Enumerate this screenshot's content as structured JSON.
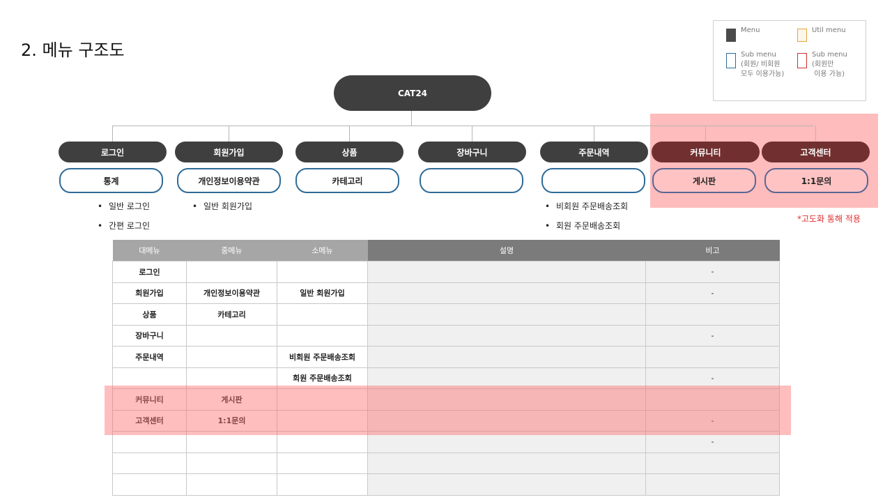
{
  "title": "2. 메뉴 구조도",
  "legend": [
    {
      "label": "Menu",
      "color": "#4a4a4a",
      "style": "filled"
    },
    {
      "label": "Util menu",
      "color": "#e8a43c",
      "style": "outlined"
    },
    {
      "label": "Sub menu\n(회원/ 비회원\n모두 이용가능)",
      "color": "#2e6b97",
      "style": "outlined"
    },
    {
      "label": "Sub menu\n(회원만\n 이용 가능)",
      "color": "#d03030",
      "style": "outlined"
    }
  ],
  "diagram": {
    "root": "CAT24",
    "branches": [
      {
        "label": "로그인",
        "sub": "통계",
        "bullets": [
          "일반 로그인",
          "간편 로그인"
        ],
        "advanced": false
      },
      {
        "label": "회원가입",
        "sub": "개인정보이용약관",
        "bullets": [
          "일반 회원가입"
        ],
        "advanced": false
      },
      {
        "label": "상품",
        "sub": "카테고리",
        "bullets": [],
        "advanced": false
      },
      {
        "label": "장바구니",
        "sub": "",
        "bullets": [],
        "advanced": false
      },
      {
        "label": "주문내역",
        "sub": "",
        "bullets": [
          "비회원 주문배송조회",
          "회원 주문배송조회"
        ],
        "advanced": false
      },
      {
        "label": "커뮤니티",
        "sub": "게시판",
        "bullets": [],
        "advanced": true
      },
      {
        "label": "고객센터",
        "sub": "1:1문의",
        "bullets": [],
        "advanced": true
      }
    ],
    "advanced_note": "*고도화 통해 적용",
    "colors": {
      "main": "#3f3f3f",
      "advanced_main": "#722f2f",
      "sub_border": "#2e6b97",
      "highlight": "#ffbcbc"
    }
  },
  "table": {
    "headers": [
      "대메뉴",
      "중메뉴",
      "소메뉴",
      "설명",
      "비고"
    ],
    "rows": [
      [
        "로그인",
        "",
        "",
        "",
        "-"
      ],
      [
        "회원가입",
        "개인정보이용약관",
        "일반 회원가입",
        "",
        "-"
      ],
      [
        "상품",
        "카테고리",
        "",
        "",
        ""
      ],
      [
        "장바구니",
        "",
        "",
        "",
        "-"
      ],
      [
        "주문내역",
        "",
        "비회원 주문배송조회",
        "",
        ""
      ],
      [
        "",
        "",
        "회원 주문배송조회",
        "",
        "-"
      ],
      [
        "커뮤니티",
        "게시판",
        "",
        "",
        ""
      ],
      [
        "고객센터",
        "1:1문의",
        "",
        "",
        "-"
      ],
      [
        "",
        "",
        "",
        "",
        "-"
      ],
      [
        "",
        "",
        "",
        "",
        ""
      ],
      [
        "",
        "",
        "",
        "",
        ""
      ]
    ],
    "highlighted_rows": [
      6,
      7
    ]
  }
}
